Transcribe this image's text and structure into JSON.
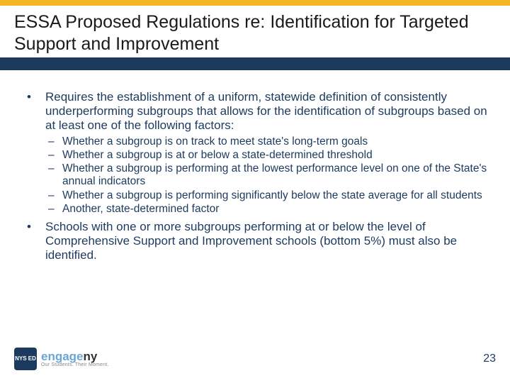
{
  "colors": {
    "accent_top": "#f4b724",
    "navy": "#1c3a5e",
    "text_navy": "#1c3a5e",
    "title_text": "#1a1a1a",
    "logo_blue": "#6aa6d6",
    "background": "#ffffff"
  },
  "title": "ESSA Proposed Regulations re: Identification for Targeted Support and Improvement",
  "bullets": [
    {
      "text": "Requires the establishment of a uniform, statewide definition of consistently underperforming subgroups that allows for the identification of subgroups based on at least one of the following factors:",
      "sub": [
        "Whether a subgroup is on track to meet state's long-term goals",
        "Whether a subgroup is at or below a state-determined threshold",
        "Whether a subgroup is performing at the lowest performance level on one of the State's annual indicators",
        "Whether a subgroup is performing significantly below the state average for all students",
        "Another, state-determined factor"
      ]
    },
    {
      "text": "Schools with one or more subgroups performing at or below the level of Comprehensive Support and Improvement schools (bottom 5%) must also be identified.",
      "sub": []
    }
  ],
  "footer": {
    "badge": "NYS\nED",
    "logo_engage": "engage",
    "logo_ny": "ny",
    "tagline": "Our Students. Their Moment.",
    "page_number": "23"
  }
}
